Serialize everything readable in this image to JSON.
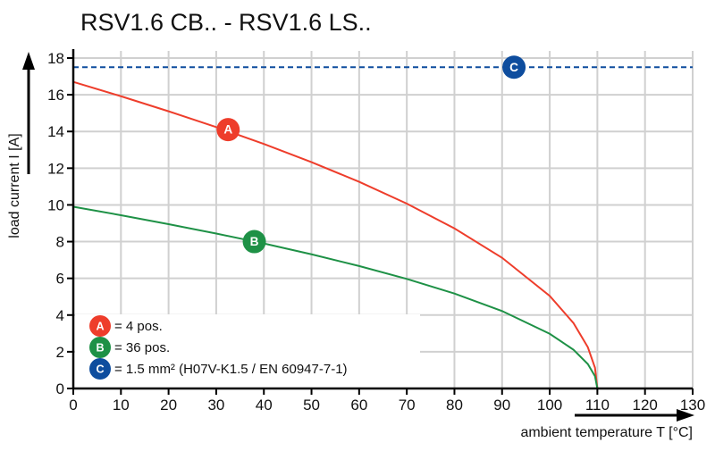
{
  "chart_data": {
    "type": "line",
    "title": "RSV1.6 CB.. - RSV1.6 LS..",
    "xlabel": "ambient temperature T [°C]",
    "ylabel": "load current I [A]",
    "xlim": [
      0,
      130
    ],
    "ylim": [
      0,
      18
    ],
    "xticks": [
      0,
      10,
      20,
      30,
      40,
      50,
      60,
      70,
      80,
      90,
      100,
      110,
      120,
      130
    ],
    "yticks": [
      0,
      2,
      4,
      6,
      8,
      10,
      12,
      14,
      16,
      18
    ],
    "grid": true,
    "legend_position": "bottom-left",
    "series": [
      {
        "marker": "A",
        "color": "#ee3d2b",
        "x": [
          0,
          10,
          20,
          30,
          40,
          50,
          60,
          70,
          80,
          90,
          100,
          105,
          108,
          109.5,
          110
        ],
        "y": [
          16.7,
          15.92,
          15.1,
          14.24,
          13.32,
          12.33,
          11.26,
          10.07,
          8.72,
          7.12,
          5.04,
          3.56,
          2.25,
          1.13,
          0
        ],
        "marker_at": [
          32.5,
          14.1
        ]
      },
      {
        "marker": "B",
        "color": "#1e9146",
        "x": [
          0,
          10,
          20,
          30,
          40,
          50,
          60,
          70,
          80,
          90,
          100,
          105,
          108,
          109.5,
          110
        ],
        "y": [
          9.9,
          9.44,
          8.95,
          8.44,
          7.9,
          7.31,
          6.67,
          5.97,
          5.17,
          4.22,
          2.98,
          2.11,
          1.33,
          0.67,
          0
        ],
        "marker_at": [
          38,
          8
        ]
      },
      {
        "marker": "C",
        "color": "#0e4d9e",
        "style": "dashed",
        "x": [
          0,
          130
        ],
        "y": [
          17.5,
          17.5
        ],
        "marker_at": [
          92.5,
          17.5
        ]
      }
    ],
    "legend": [
      {
        "marker": "A",
        "color": "#ee3d2b",
        "text": "= 4 pos."
      },
      {
        "marker": "B",
        "color": "#1e9146",
        "text": "= 36 pos."
      },
      {
        "marker": "C",
        "color": "#0e4d9e",
        "text": "= 1.5 mm² (H07V-K1.5 / EN 60947-7-1)"
      }
    ]
  }
}
